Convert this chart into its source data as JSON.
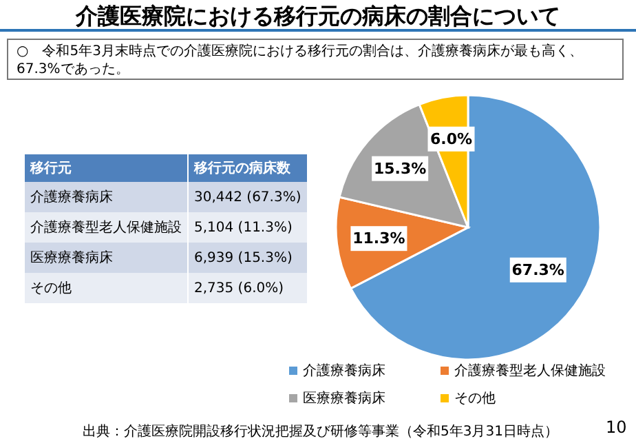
{
  "chart_data": {
    "type": "pie",
    "title": "介護医療院における移行元の病床の割合について",
    "subtitle": "○　令和5年3月末時点での介護医療院における移行元の割合は、介護療養病床が最も高く、67.3%であった。",
    "categories": [
      "介護療養病床",
      "介護療養型老人保健施設",
      "医療療養病床",
      "その他"
    ],
    "values": [
      67.3,
      11.3,
      15.3,
      6.0
    ],
    "colors": [
      "#5b9bd5",
      "#ed7d31",
      "#a5a5a5",
      "#ffc000"
    ],
    "value_labels": [
      "67.3%",
      "11.3%",
      "15.3%",
      "6.0%"
    ],
    "legend": "bottom",
    "annotations": [
      "移行元",
      "移行元の病床数",
      "30,442 (67.3%)",
      "5,104 (11.3%)",
      "6,939 (15.3%)",
      "2,735 (6.0%)",
      "出典：介護医療院開設移行状況把握及び研修等事業（令和5年3月31日時点）",
      "10"
    ]
  }
}
